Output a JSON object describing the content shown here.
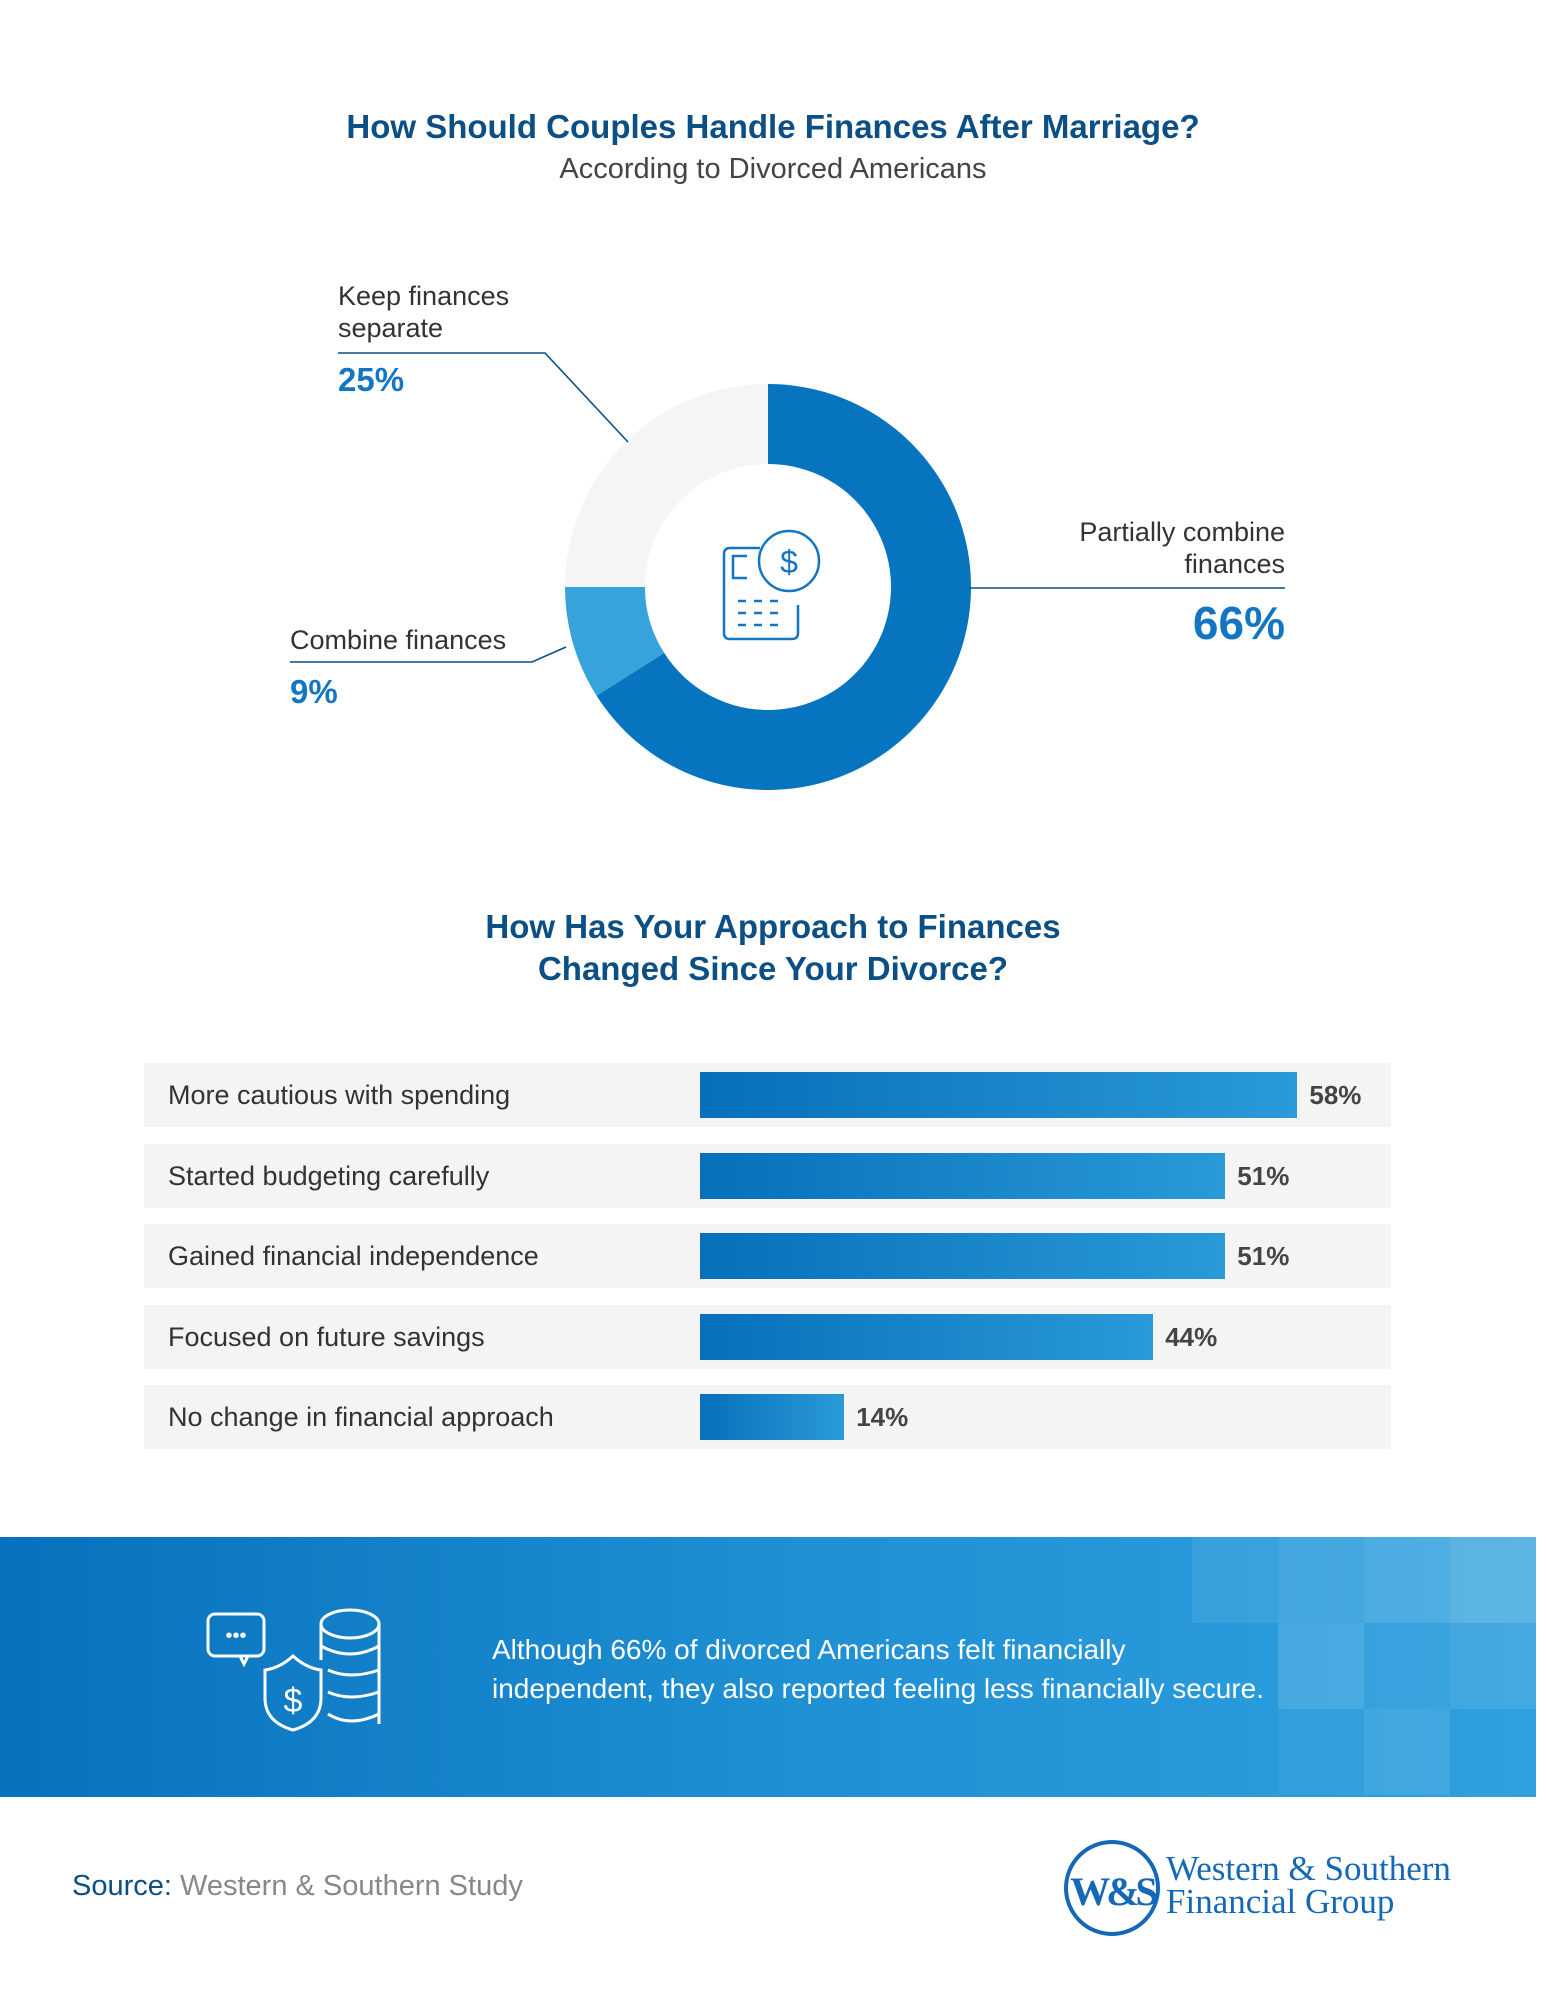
{
  "chart_data": [
    {
      "type": "pie",
      "title": "How Should Couples Handle Finances After Marriage?",
      "subtitle": "According to Divorced Americans",
      "donut": true,
      "center_icon": "calculator-dollar-icon",
      "slices": [
        {
          "label": "Partially combine finances",
          "value": 66,
          "display": "66%",
          "color": "#0674be"
        },
        {
          "label": "Combine finances",
          "value": 9,
          "display": "9%",
          "color": "#36a3dc"
        },
        {
          "label": "Keep finances separate",
          "value": 25,
          "display": "25%",
          "color": "#f5f5f5"
        }
      ]
    },
    {
      "type": "bar",
      "orientation": "horizontal",
      "title": "How Has Your Approach to Finances Changed Since Your Divorce?",
      "title_lines": [
        "How Has Your Approach to Finances",
        "Changed Since Your Divorce?"
      ],
      "categories": [
        "More cautious with spending",
        "Started budgeting carefully",
        "Gained financial independence",
        "Focused on future savings",
        "No change in financial approach"
      ],
      "values": [
        58,
        51,
        51,
        44,
        14
      ],
      "labels": [
        "58%",
        "51%",
        "51%",
        "44%",
        "14%"
      ],
      "unit": "%",
      "xlim": [
        0,
        100
      ],
      "colors": {
        "bar_start": "#0670bb",
        "bar_end": "#2a9ad8",
        "row_bg": "#f4f4f4"
      }
    }
  ],
  "donut_labels": {
    "keep_line1": "Keep finances",
    "keep_line2": "separate",
    "partial_line1": "Partially combine",
    "partial_line2": "finances",
    "combine": "Combine finances"
  },
  "banner": {
    "icon": "chat-shield-coins-icon",
    "line1": "Although 66% of divorced Americans felt financially",
    "line2": "independent, they also reported feeling less financially secure."
  },
  "footer": {
    "source_label": "Source:",
    "source_text": " Western & Southern Study",
    "logo_monogram": "W&S",
    "logo_line1": "Western & Southern",
    "logo_line2": "Financial Group"
  },
  "colors": {
    "title": "#0b4f85",
    "accent": "#1476c2"
  }
}
